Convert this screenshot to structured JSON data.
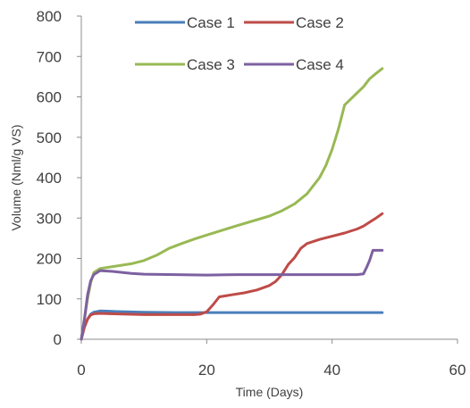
{
  "chart_data": {
    "type": "line",
    "title": "",
    "xlabel": "Time (Days)",
    "ylabel": "Volume (Nml/g VS)",
    "xlim": [
      0,
      60
    ],
    "ylim": [
      0,
      800
    ],
    "xticks": [
      0,
      20,
      40,
      60
    ],
    "yticks": [
      0,
      100,
      200,
      300,
      400,
      500,
      600,
      700,
      800
    ],
    "grid": "none",
    "legend_position": "top, inside plot",
    "series": [
      {
        "name": "Case 1",
        "color": "#4a7ebb",
        "points": [
          [
            0,
            0
          ],
          [
            0.5,
            30
          ],
          [
            1,
            50
          ],
          [
            1.5,
            62
          ],
          [
            2,
            67
          ],
          [
            3,
            70
          ],
          [
            5,
            69
          ],
          [
            10,
            67
          ],
          [
            15,
            66
          ],
          [
            20,
            66
          ],
          [
            30,
            66
          ],
          [
            40,
            66
          ],
          [
            48,
            66
          ]
        ]
      },
      {
        "name": "Case 2",
        "color": "#be4b48",
        "points": [
          [
            0,
            0
          ],
          [
            0.5,
            30
          ],
          [
            1,
            50
          ],
          [
            1.5,
            60
          ],
          [
            2,
            63
          ],
          [
            3,
            64
          ],
          [
            5,
            63
          ],
          [
            10,
            61
          ],
          [
            15,
            61
          ],
          [
            18,
            61
          ],
          [
            19,
            62
          ],
          [
            20,
            68
          ],
          [
            21,
            85
          ],
          [
            22,
            105
          ],
          [
            24,
            110
          ],
          [
            26,
            115
          ],
          [
            28,
            122
          ],
          [
            30,
            133
          ],
          [
            31,
            143
          ],
          [
            32,
            160
          ],
          [
            33,
            185
          ],
          [
            34,
            202
          ],
          [
            35,
            225
          ],
          [
            36,
            237
          ],
          [
            38,
            247
          ],
          [
            40,
            255
          ],
          [
            42,
            263
          ],
          [
            44,
            273
          ],
          [
            45,
            280
          ],
          [
            46,
            290
          ],
          [
            47,
            300
          ],
          [
            48,
            311
          ]
        ]
      },
      {
        "name": "Case 3",
        "color": "#98b954",
        "points": [
          [
            0,
            0
          ],
          [
            0.5,
            50
          ],
          [
            1,
            100
          ],
          [
            1.5,
            140
          ],
          [
            2,
            165
          ],
          [
            3,
            175
          ],
          [
            5,
            180
          ],
          [
            8,
            187
          ],
          [
            10,
            195
          ],
          [
            12,
            208
          ],
          [
            14,
            225
          ],
          [
            16,
            237
          ],
          [
            18,
            248
          ],
          [
            20,
            258
          ],
          [
            25,
            282
          ],
          [
            30,
            305
          ],
          [
            32,
            318
          ],
          [
            34,
            335
          ],
          [
            36,
            360
          ],
          [
            38,
            400
          ],
          [
            39,
            430
          ],
          [
            40,
            470
          ],
          [
            41,
            520
          ],
          [
            42,
            580
          ],
          [
            43,
            595
          ],
          [
            44,
            610
          ],
          [
            45,
            625
          ],
          [
            46,
            645
          ],
          [
            47,
            658
          ],
          [
            48,
            670
          ]
        ]
      },
      {
        "name": "Case 4",
        "color": "#7d60a0",
        "points": [
          [
            0,
            0
          ],
          [
            0.5,
            50
          ],
          [
            1,
            110
          ],
          [
            1.5,
            145
          ],
          [
            2,
            160
          ],
          [
            3,
            170
          ],
          [
            5,
            168
          ],
          [
            8,
            163
          ],
          [
            10,
            161
          ],
          [
            15,
            160
          ],
          [
            20,
            159
          ],
          [
            25,
            160
          ],
          [
            30,
            160
          ],
          [
            35,
            160
          ],
          [
            40,
            160
          ],
          [
            44,
            160
          ],
          [
            45,
            162
          ],
          [
            45.5,
            178
          ],
          [
            46,
            196
          ],
          [
            46.5,
            220
          ],
          [
            48,
            220
          ]
        ]
      }
    ]
  }
}
